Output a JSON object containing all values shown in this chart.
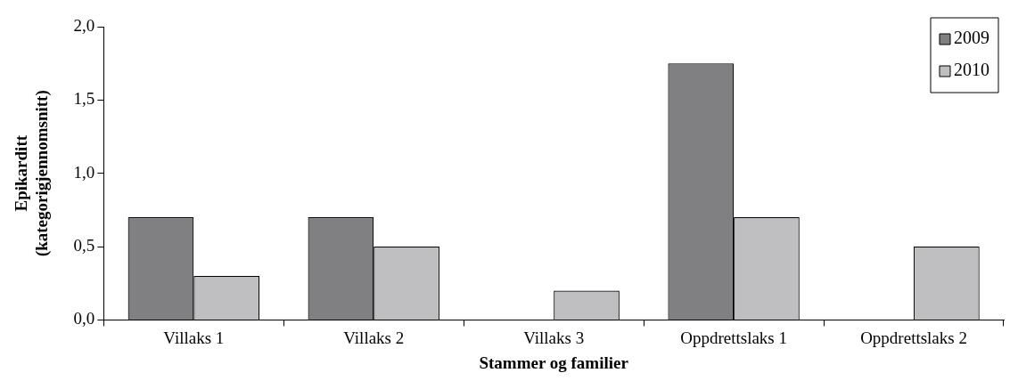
{
  "chart_data": {
    "type": "bar",
    "xlabel": "Stammer og familier",
    "ylabel": "Epikarditt (kategorigjennomsnitt)",
    "categories": [
      "Villaks 1",
      "Villaks 2",
      "Villaks 3",
      "Oppdrettslaks 1",
      "Oppdrettslaks 2"
    ],
    "series": [
      {
        "name": "2009",
        "color": "#808083",
        "values": [
          0.7,
          0.7,
          0,
          1.75,
          0
        ]
      },
      {
        "name": "2010",
        "color": "#bfbfc1",
        "values": [
          0.3,
          0.5,
          0.2,
          0.7,
          0.5
        ]
      }
    ],
    "ylim": [
      0,
      2
    ],
    "yticks": [
      {
        "value": 0,
        "label": "0,0"
      },
      {
        "value": 0.5,
        "label": "0,5"
      },
      {
        "value": 1,
        "label": "1,0"
      },
      {
        "value": 1.5,
        "label": "1,5"
      },
      {
        "value": 2,
        "label": "2,0"
      }
    ],
    "grid": false,
    "legend": "top right"
  }
}
